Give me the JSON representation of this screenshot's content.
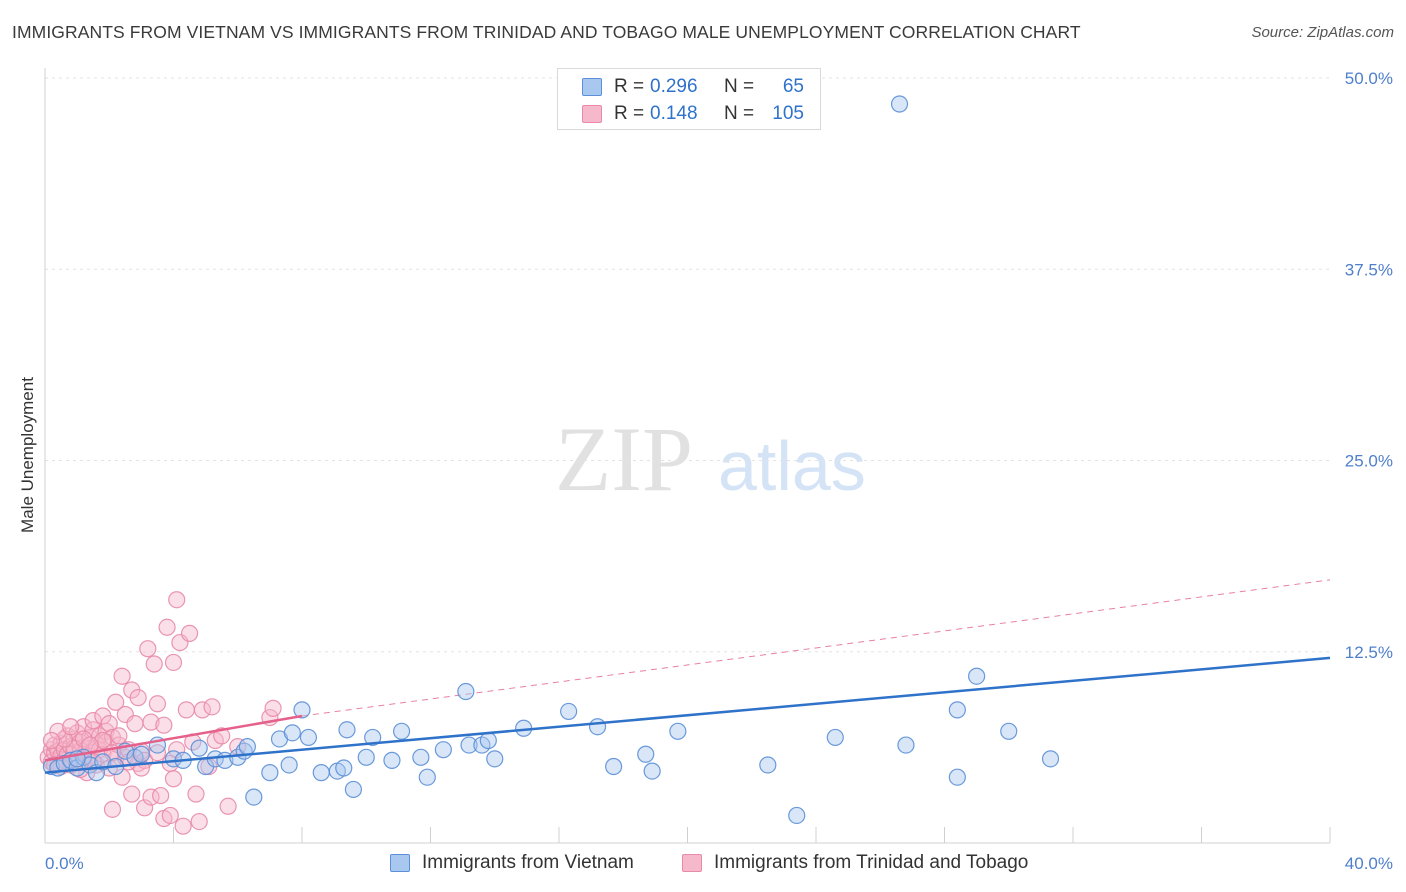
{
  "title": "IMMIGRANTS FROM VIETNAM VS IMMIGRANTS FROM TRINIDAD AND TOBAGO MALE UNEMPLOYMENT CORRELATION CHART",
  "source": "Source: ZipAtlas.com",
  "watermark": {
    "zip": "ZIP",
    "atlas": "atlas"
  },
  "colors": {
    "vietnam_fill": "#a9c8f0",
    "vietnam_stroke": "#5b8fd6",
    "vietnam_line": "#2f72c9",
    "trinidad_fill": "#f6b8cb",
    "trinidad_stroke": "#e88aa8",
    "trinidad_line": "#e5608a",
    "axis_text": "#4f7fcc",
    "grid": "#e3e3e3"
  },
  "legend": {
    "rows": [
      {
        "r_label": "R =",
        "r_value": "0.296",
        "n_label": "N =",
        "n_value": "65"
      },
      {
        "r_label": "R =",
        "r_value": "0.148",
        "n_label": "N =",
        "n_value": "105"
      }
    ]
  },
  "bottom_legend": [
    "Immigrants from Vietnam",
    "Immigrants from Trinidad and Tobago"
  ],
  "chart_data": {
    "type": "scatter",
    "title": "IMMIGRANTS FROM VIETNAM VS IMMIGRANTS FROM TRINIDAD AND TOBAGO MALE UNEMPLOYMENT CORRELATION CHART",
    "xlabel": "",
    "ylabel": "Male Unemployment",
    "xlim": [
      0,
      40
    ],
    "ylim": [
      0,
      50
    ],
    "x_tick_labels": [
      "0.0%",
      "40.0%"
    ],
    "y_ticks": [
      12.5,
      25.0,
      37.5,
      50.0
    ],
    "y_tick_labels": [
      "12.5%",
      "25.0%",
      "37.5%",
      "50.0%"
    ],
    "series": [
      {
        "name": "Immigrants from Vietnam",
        "R": 0.296,
        "N": 65,
        "trend": {
          "x": [
            0,
            40
          ],
          "y": [
            4.6,
            12.1
          ],
          "style": "solid"
        },
        "points": [
          [
            0.2,
            5.0
          ],
          [
            0.4,
            4.9
          ],
          [
            0.6,
            5.2
          ],
          [
            0.8,
            5.4
          ],
          [
            1.0,
            4.9
          ],
          [
            1.2,
            5.6
          ],
          [
            1.4,
            5.1
          ],
          [
            1.6,
            4.6
          ],
          [
            1.8,
            5.3
          ],
          [
            2.2,
            5.0
          ],
          [
            2.5,
            6.0
          ],
          [
            2.8,
            5.6
          ],
          [
            3.0,
            5.8
          ],
          [
            3.5,
            6.4
          ],
          [
            4.0,
            5.5
          ],
          [
            4.3,
            5.4
          ],
          [
            4.8,
            6.2
          ],
          [
            5.0,
            5.0
          ],
          [
            5.3,
            5.5
          ],
          [
            5.6,
            5.4
          ],
          [
            6.0,
            5.6
          ],
          [
            6.2,
            6.0
          ],
          [
            6.3,
            6.3
          ],
          [
            6.5,
            3.0
          ],
          [
            7.0,
            4.6
          ],
          [
            7.3,
            6.8
          ],
          [
            7.6,
            5.1
          ],
          [
            7.7,
            7.2
          ],
          [
            8.0,
            8.7
          ],
          [
            8.2,
            6.9
          ],
          [
            8.6,
            4.6
          ],
          [
            9.1,
            4.7
          ],
          [
            9.3,
            4.9
          ],
          [
            9.4,
            7.4
          ],
          [
            9.6,
            3.5
          ],
          [
            10.2,
            6.9
          ],
          [
            10.0,
            5.6
          ],
          [
            10.8,
            5.4
          ],
          [
            11.1,
            7.3
          ],
          [
            11.7,
            5.6
          ],
          [
            11.9,
            4.3
          ],
          [
            12.4,
            6.1
          ],
          [
            13.1,
            9.9
          ],
          [
            13.2,
            6.4
          ],
          [
            13.6,
            6.4
          ],
          [
            13.8,
            6.7
          ],
          [
            14.0,
            5.5
          ],
          [
            14.9,
            7.5
          ],
          [
            16.3,
            8.6
          ],
          [
            17.7,
            5.0
          ],
          [
            17.2,
            7.6
          ],
          [
            18.9,
            4.7
          ],
          [
            18.7,
            5.8
          ],
          [
            19.7,
            7.3
          ],
          [
            22.5,
            5.1
          ],
          [
            23.4,
            1.8
          ],
          [
            24.6,
            6.9
          ],
          [
            26.6,
            48.3
          ],
          [
            26.8,
            6.4
          ],
          [
            28.4,
            8.7
          ],
          [
            28.4,
            4.3
          ],
          [
            29.0,
            10.9
          ],
          [
            30.0,
            7.3
          ],
          [
            31.3,
            5.5
          ],
          [
            1.0,
            5.5
          ]
        ]
      },
      {
        "name": "Immigrants from Trinidad and Tobago",
        "R": 0.148,
        "N": 105,
        "trend": {
          "x": [
            0,
            8.0
          ],
          "y": [
            5.4,
            8.3
          ],
          "style": "solid"
        },
        "trend_extension": {
          "x": [
            8.0,
            40
          ],
          "y": [
            8.3,
            17.2
          ],
          "style": "dashed"
        },
        "points": [
          [
            0.1,
            5.6
          ],
          [
            0.2,
            6.1
          ],
          [
            0.2,
            5.3
          ],
          [
            0.3,
            5.9
          ],
          [
            0.3,
            6.4
          ],
          [
            0.4,
            5.2
          ],
          [
            0.4,
            6.0
          ],
          [
            0.5,
            5.7
          ],
          [
            0.5,
            6.5
          ],
          [
            0.6,
            5.4
          ],
          [
            0.6,
            6.1
          ],
          [
            0.7,
            5.8
          ],
          [
            0.7,
            7.0
          ],
          [
            0.8,
            5.1
          ],
          [
            0.8,
            6.3
          ],
          [
            0.9,
            5.9
          ],
          [
            0.9,
            6.8
          ],
          [
            1.0,
            5.5
          ],
          [
            1.0,
            7.2
          ],
          [
            1.1,
            6.0
          ],
          [
            1.1,
            6.6
          ],
          [
            1.2,
            5.3
          ],
          [
            1.2,
            7.6
          ],
          [
            1.3,
            6.2
          ],
          [
            1.3,
            4.6
          ],
          [
            1.4,
            6.9
          ],
          [
            1.4,
            5.7
          ],
          [
            1.5,
            7.4
          ],
          [
            1.5,
            8.0
          ],
          [
            1.6,
            6.4
          ],
          [
            1.6,
            5.1
          ],
          [
            1.7,
            7.0
          ],
          [
            1.7,
            6.1
          ],
          [
            1.8,
            8.3
          ],
          [
            1.8,
            5.8
          ],
          [
            1.9,
            7.3
          ],
          [
            1.9,
            6.6
          ],
          [
            2.0,
            4.9
          ],
          [
            2.0,
            7.8
          ],
          [
            2.1,
            6.9
          ],
          [
            2.1,
            2.2
          ],
          [
            2.2,
            9.2
          ],
          [
            2.2,
            5.5
          ],
          [
            2.3,
            6.4
          ],
          [
            2.3,
            7.0
          ],
          [
            2.4,
            10.9
          ],
          [
            2.4,
            4.3
          ],
          [
            2.5,
            8.4
          ],
          [
            2.5,
            5.6
          ],
          [
            2.6,
            6.1
          ],
          [
            2.7,
            10.0
          ],
          [
            2.7,
            3.2
          ],
          [
            2.8,
            7.8
          ],
          [
            2.9,
            9.5
          ],
          [
            2.9,
            5.2
          ],
          [
            3.0,
            6.0
          ],
          [
            3.1,
            2.3
          ],
          [
            3.1,
            5.4
          ],
          [
            3.2,
            12.7
          ],
          [
            3.3,
            7.9
          ],
          [
            3.3,
            3.0
          ],
          [
            3.4,
            11.7
          ],
          [
            3.5,
            9.1
          ],
          [
            3.5,
            5.9
          ],
          [
            3.6,
            3.1
          ],
          [
            3.7,
            1.6
          ],
          [
            3.7,
            7.7
          ],
          [
            3.8,
            14.1
          ],
          [
            3.9,
            1.8
          ],
          [
            3.9,
            5.2
          ],
          [
            4.0,
            11.8
          ],
          [
            4.0,
            4.2
          ],
          [
            4.1,
            15.9
          ],
          [
            4.1,
            6.1
          ],
          [
            4.2,
            13.1
          ],
          [
            4.3,
            1.1
          ],
          [
            4.4,
            8.7
          ],
          [
            4.5,
            13.7
          ],
          [
            4.6,
            6.6
          ],
          [
            4.7,
            3.2
          ],
          [
            4.8,
            1.4
          ],
          [
            4.9,
            8.7
          ],
          [
            5.1,
            5.0
          ],
          [
            5.2,
            8.9
          ],
          [
            5.3,
            6.7
          ],
          [
            5.5,
            7.0
          ],
          [
            5.7,
            2.4
          ],
          [
            6.0,
            6.3
          ],
          [
            7.0,
            8.2
          ],
          [
            7.1,
            8.8
          ],
          [
            0.5,
            5.0
          ],
          [
            0.9,
            6.2
          ],
          [
            1.2,
            6.8
          ],
          [
            1.5,
            5.3
          ],
          [
            1.8,
            6.7
          ],
          [
            2.1,
            5.9
          ],
          [
            0.3,
            5.1
          ],
          [
            0.6,
            6.8
          ],
          [
            0.4,
            7.3
          ],
          [
            1.1,
            4.8
          ],
          [
            2.6,
            5.3
          ],
          [
            3.0,
            4.9
          ],
          [
            0.2,
            6.7
          ],
          [
            1.4,
            6.4
          ],
          [
            0.8,
            7.6
          ]
        ]
      }
    ]
  }
}
